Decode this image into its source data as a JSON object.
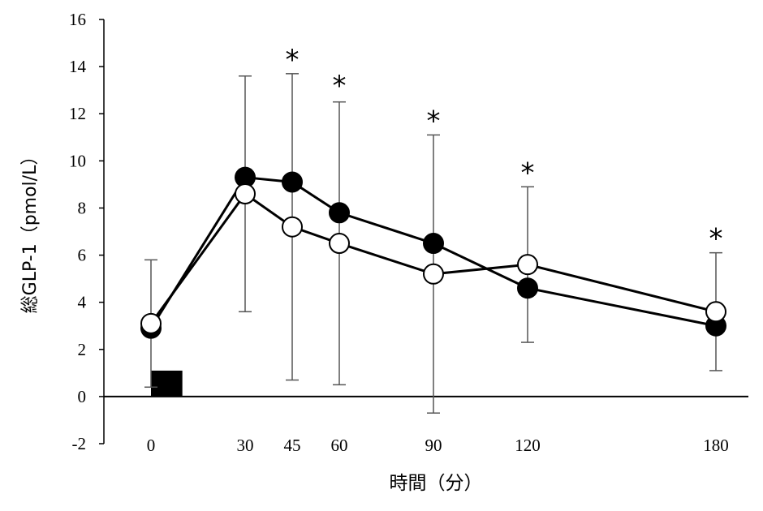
{
  "chart_data": {
    "type": "line",
    "title": "",
    "xlabel": "時間（分）",
    "ylabel": "総GLP-1（pmol/L）",
    "xlim": [
      -15,
      185
    ],
    "ylim": [
      -2,
      16
    ],
    "x_ticks": [
      0,
      30,
      45,
      60,
      90,
      120,
      180
    ],
    "y_ticks": [
      -2,
      0,
      2,
      4,
      6,
      8,
      10,
      12,
      14,
      16
    ],
    "grid": false,
    "x": [
      0,
      30,
      45,
      60,
      90,
      120,
      180
    ],
    "series": [
      {
        "marker": "filled-circle",
        "color": "#000000",
        "values": [
          2.9,
          9.3,
          9.1,
          7.8,
          6.5,
          4.6,
          3.0
        ],
        "error_bars": [
          null,
          null,
          null,
          null,
          null,
          null,
          null
        ]
      },
      {
        "marker": "open-circle",
        "color": "#000000",
        "values": [
          3.1,
          8.6,
          7.2,
          6.5,
          5.2,
          5.6,
          3.6
        ],
        "error_bars": [
          2.7,
          5.0,
          6.5,
          6.0,
          5.9,
          3.3,
          2.5
        ]
      }
    ],
    "significance": {
      "symbol": "*",
      "x": [
        45,
        60,
        90,
        120,
        180
      ]
    },
    "bar_marker": {
      "x_range": [
        0,
        10
      ],
      "y_range": [
        0,
        1.1
      ],
      "color": "#000000"
    }
  }
}
